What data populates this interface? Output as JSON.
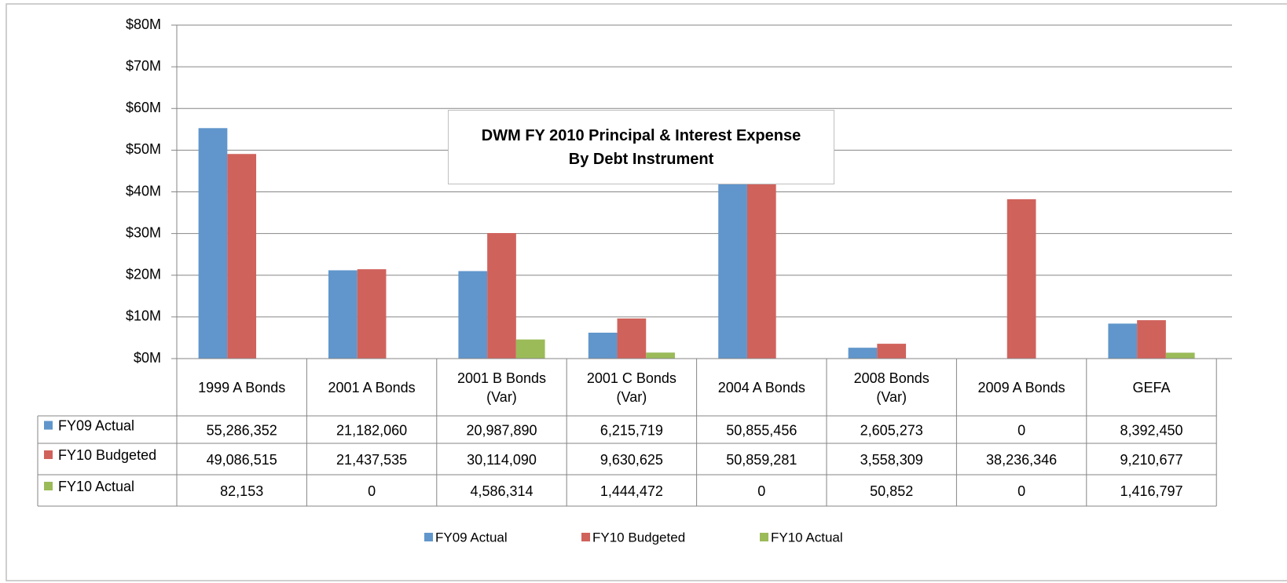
{
  "chart_data": {
    "type": "bar",
    "title": "DWM FY 2010 Principal & Interest Expense\nBy Debt Instrument",
    "categories": [
      "1999 A Bonds",
      "2001 A Bonds",
      "2001 B Bonds\n(Var)",
      "2001 C Bonds\n(Var)",
      "2004 A Bonds",
      "2008 Bonds\n(Var)",
      "2009 A Bonds",
      "GEFA"
    ],
    "series": [
      {
        "name": "FY09 Actual",
        "color": "#6096cb",
        "values": [
          55286352,
          21182060,
          20987890,
          6215719,
          50855456,
          2605273,
          0,
          8392450
        ],
        "value_labels": [
          "55,286,352",
          "21,182,060",
          "20,987,890",
          "6,215,719",
          "50,855,456",
          "2,605,273",
          "0",
          "8,392,450"
        ]
      },
      {
        "name": "FY10 Budgeted",
        "color": "#d0625c",
        "values": [
          49086515,
          21437535,
          30114090,
          9630625,
          50859281,
          3558309,
          38236346,
          9210677
        ],
        "value_labels": [
          "49,086,515",
          "21,437,535",
          "30,114,090",
          "9,630,625",
          "50,859,281",
          "3,558,309",
          "38,236,346",
          "9,210,677"
        ]
      },
      {
        "name": "FY10 Actual",
        "color": "#9bbb59",
        "values": [
          82153,
          0,
          4586314,
          1444472,
          0,
          50852,
          0,
          1416797
        ],
        "value_labels": [
          "82,153",
          "0",
          "4,586,314",
          "1,444,472",
          "0",
          "50,852",
          "0",
          "1,416,797"
        ]
      }
    ],
    "ylim": [
      0,
      80000000
    ],
    "yticks": [
      {
        "value": 0,
        "label": "$0M"
      },
      {
        "value": 10000000,
        "label": "$10M"
      },
      {
        "value": 20000000,
        "label": "$20M"
      },
      {
        "value": 30000000,
        "label": "$30M"
      },
      {
        "value": 40000000,
        "label": "$40M"
      },
      {
        "value": 50000000,
        "label": "$50M"
      },
      {
        "value": 60000000,
        "label": "$60M"
      },
      {
        "value": 70000000,
        "label": "$70M"
      },
      {
        "value": 80000000,
        "label": "$80M"
      }
    ],
    "grid": true,
    "legend": "bottom"
  }
}
